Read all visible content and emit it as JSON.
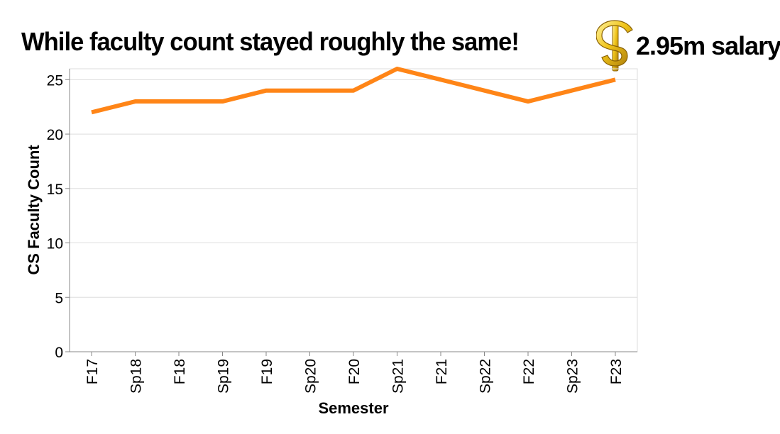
{
  "title": "While faculty count stayed roughly the same!",
  "callout": {
    "icon": "dollar-sign-icon",
    "text": "2.95m salary",
    "icon_color": "#e3b30c"
  },
  "chart_data": {
    "type": "line",
    "categories": [
      "F17",
      "Sp18",
      "F18",
      "Sp19",
      "F19",
      "Sp20",
      "F20",
      "Sp21",
      "F21",
      "Sp22",
      "F22",
      "Sp23",
      "F23"
    ],
    "series": [
      {
        "values": [
          22,
          23,
          23,
          23,
          24,
          24,
          24,
          26,
          25,
          24,
          23,
          24,
          25
        ],
        "color": "#ff8517"
      }
    ],
    "xlabel": "Semester",
    "ylabel": "CS Faculty Count",
    "ylim": [
      0,
      26
    ],
    "yticks": [
      0,
      5,
      10,
      15,
      20,
      25
    ],
    "grid": true
  }
}
